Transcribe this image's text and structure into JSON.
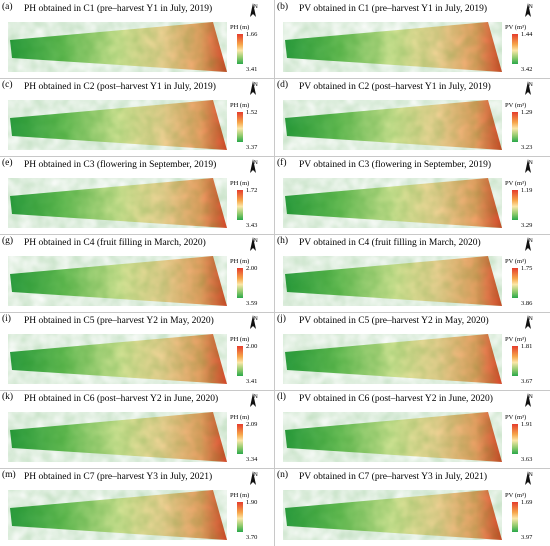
{
  "panels": [
    {
      "label": "(a)",
      "title": "PH obtained in C1 (pre–harvest Y1 in July, 2019)",
      "legend_title": "PH (m)",
      "max": "1.66",
      "min": "3.41"
    },
    {
      "label": "(b)",
      "title": "PV obtained in C1 (pre–harvest Y1 in July, 2019)",
      "legend_title": "PV (m³)",
      "max": "1.44",
      "min": "3.42"
    },
    {
      "label": "(c)",
      "title": "PH obtained in C2 (post–harvest Y1 in July, 2019)",
      "legend_title": "PH (m)",
      "max": "1.52",
      "min": "3.37"
    },
    {
      "label": "(d)",
      "title": "PV obtained in C2 (post–harvest Y1 in July, 2019)",
      "legend_title": "PV (m³)",
      "max": "1.29",
      "min": "3.23"
    },
    {
      "label": "(e)",
      "title": "PH obtained in C3 (flowering in September, 2019)",
      "legend_title": "PH (m)",
      "max": "1.72",
      "min": "3.43"
    },
    {
      "label": "(f)",
      "title": "PV obtained in C3 (flowering  in September, 2019)",
      "legend_title": "PV (m³)",
      "max": "1.19",
      "min": "3.29"
    },
    {
      "label": "(g)",
      "title": "PH obtained in C4 (fruit filling in March, 2020)",
      "legend_title": "PH (m)",
      "max": "2.00",
      "min": "3.59"
    },
    {
      "label": "(h)",
      "title": "PV obtained in C4 (fruit filling in March, 2020)",
      "legend_title": "PV (m³)",
      "max": "1.75",
      "min": "3.86"
    },
    {
      "label": "(i)",
      "title": "PH obtained in C5 (pre–harvest Y2 in May, 2020)",
      "legend_title": "PH (m)",
      "max": "2.00",
      "min": "3.41"
    },
    {
      "label": "(j)",
      "title": "PV obtained in C5 (pre–harvest Y2 in May, 2020)",
      "legend_title": "PV (m³)",
      "max": "1.81",
      "min": "3.67"
    },
    {
      "label": "(k)",
      "title": "PH obtained in C6 (post–harvest Y2 in June, 2020)",
      "legend_title": "PH (m)",
      "max": "2.09",
      "min": "3.34"
    },
    {
      "label": "(l)",
      "title": "PV obtained in C6 (post–harvest Y2 in June, 2020)",
      "legend_title": "PV (m³)",
      "max": "1.91",
      "min": "3.63"
    },
    {
      "label": "(m)",
      "title": "PH obtained in C7 (pre–harvest Y3 in July, 2021)",
      "legend_title": "PH (m)",
      "max": "1.90",
      "min": "3.70"
    },
    {
      "label": "(n)",
      "title": "PV obtained in C7 (pre–harvest Y3 in July, 2021)",
      "legend_title": "PV (m³)",
      "max": "1.69",
      "min": "3.97"
    }
  ],
  "colors": {
    "high": "#e53d2d",
    "mid": "#fbe7a8",
    "low": "#2aa84a"
  },
  "icons": {
    "north_arrow": "north-arrow-icon"
  }
}
